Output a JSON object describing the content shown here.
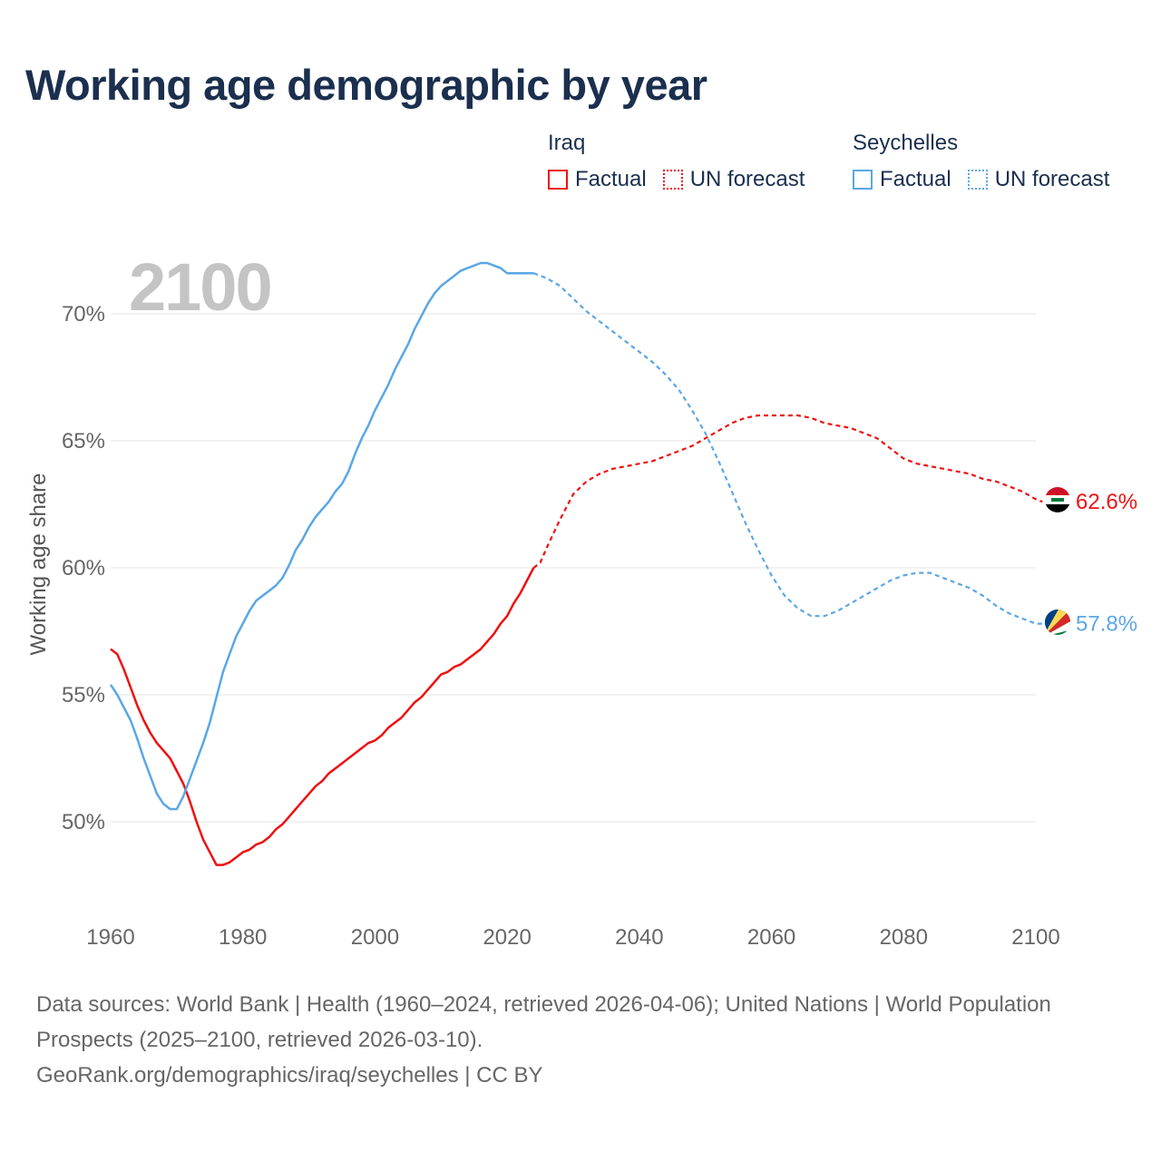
{
  "title": "Working age demographic by year",
  "year_watermark": "2100",
  "legend": {
    "groups": [
      {
        "name": "Iraq",
        "color": "#ee1111",
        "factual_label": "Factual",
        "forecast_label": "UN forecast"
      },
      {
        "name": "Seychelles",
        "color": "#5aa7e6",
        "factual_label": "Factual",
        "forecast_label": "UN forecast"
      }
    ]
  },
  "footer": {
    "sources": "Data sources: World Bank | Health (1960–2024, retrieved 2026-04-06); United Nations | World Population Prospects (2025–2100, retrieved 2026-03-10).",
    "credit": "GeoRank.org/demographics/iraq/seychelles | CC BY"
  },
  "chart_data": {
    "type": "line",
    "ylabel": "Working age share",
    "xlabel": "",
    "xlim": [
      1960,
      2100
    ],
    "ylim": [
      46.5,
      73.5
    ],
    "x_ticks": [
      1960,
      1980,
      2000,
      2020,
      2040,
      2060,
      2080,
      2100
    ],
    "y_ticks": [
      50,
      55,
      60,
      65,
      70
    ],
    "y_tick_labels": [
      "50%",
      "55%",
      "60%",
      "65%",
      "70%"
    ],
    "forecast_start": 2024,
    "series": [
      {
        "name": "Iraq",
        "color": "#ee1111",
        "end_label": "62.6%",
        "flag": "iraq-flag-icon",
        "points": [
          [
            1960,
            56.8
          ],
          [
            1961,
            56.6
          ],
          [
            1962,
            56.0
          ],
          [
            1963,
            55.3
          ],
          [
            1964,
            54.6
          ],
          [
            1965,
            54.0
          ],
          [
            1966,
            53.5
          ],
          [
            1967,
            53.1
          ],
          [
            1968,
            52.8
          ],
          [
            1969,
            52.5
          ],
          [
            1970,
            52.0
          ],
          [
            1971,
            51.5
          ],
          [
            1972,
            50.8
          ],
          [
            1973,
            50.0
          ],
          [
            1974,
            49.3
          ],
          [
            1975,
            48.8
          ],
          [
            1976,
            48.3
          ],
          [
            1977,
            48.3
          ],
          [
            1978,
            48.4
          ],
          [
            1979,
            48.6
          ],
          [
            1980,
            48.8
          ],
          [
            1981,
            48.9
          ],
          [
            1982,
            49.1
          ],
          [
            1983,
            49.2
          ],
          [
            1984,
            49.4
          ],
          [
            1985,
            49.7
          ],
          [
            1986,
            49.9
          ],
          [
            1987,
            50.2
          ],
          [
            1988,
            50.5
          ],
          [
            1989,
            50.8
          ],
          [
            1990,
            51.1
          ],
          [
            1991,
            51.4
          ],
          [
            1992,
            51.6
          ],
          [
            1993,
            51.9
          ],
          [
            1994,
            52.1
          ],
          [
            1995,
            52.3
          ],
          [
            1996,
            52.5
          ],
          [
            1997,
            52.7
          ],
          [
            1998,
            52.9
          ],
          [
            1999,
            53.1
          ],
          [
            2000,
            53.2
          ],
          [
            2001,
            53.4
          ],
          [
            2002,
            53.7
          ],
          [
            2003,
            53.9
          ],
          [
            2004,
            54.1
          ],
          [
            2005,
            54.4
          ],
          [
            2006,
            54.7
          ],
          [
            2007,
            54.9
          ],
          [
            2008,
            55.2
          ],
          [
            2009,
            55.5
          ],
          [
            2010,
            55.8
          ],
          [
            2011,
            55.9
          ],
          [
            2012,
            56.1
          ],
          [
            2013,
            56.2
          ],
          [
            2014,
            56.4
          ],
          [
            2015,
            56.6
          ],
          [
            2016,
            56.8
          ],
          [
            2017,
            57.1
          ],
          [
            2018,
            57.4
          ],
          [
            2019,
            57.8
          ],
          [
            2020,
            58.1
          ],
          [
            2021,
            58.6
          ],
          [
            2022,
            59.0
          ],
          [
            2023,
            59.5
          ],
          [
            2024,
            60.0
          ],
          [
            2025,
            60.2
          ],
          [
            2026,
            60.8
          ],
          [
            2028,
            61.9
          ],
          [
            2030,
            62.9
          ],
          [
            2032,
            63.4
          ],
          [
            2034,
            63.7
          ],
          [
            2036,
            63.9
          ],
          [
            2038,
            64.0
          ],
          [
            2040,
            64.1
          ],
          [
            2042,
            64.2
          ],
          [
            2044,
            64.4
          ],
          [
            2046,
            64.6
          ],
          [
            2048,
            64.8
          ],
          [
            2050,
            65.1
          ],
          [
            2052,
            65.4
          ],
          [
            2054,
            65.7
          ],
          [
            2056,
            65.9
          ],
          [
            2058,
            66.0
          ],
          [
            2060,
            66.0
          ],
          [
            2064,
            66.0
          ],
          [
            2066,
            65.9
          ],
          [
            2068,
            65.7
          ],
          [
            2072,
            65.5
          ],
          [
            2074,
            65.3
          ],
          [
            2076,
            65.1
          ],
          [
            2078,
            64.7
          ],
          [
            2080,
            64.3
          ],
          [
            2082,
            64.1
          ],
          [
            2084,
            64.0
          ],
          [
            2086,
            63.9
          ],
          [
            2090,
            63.7
          ],
          [
            2092,
            63.5
          ],
          [
            2094,
            63.4
          ],
          [
            2096,
            63.2
          ],
          [
            2098,
            63.0
          ],
          [
            2100,
            62.7
          ],
          [
            2101,
            62.6
          ]
        ]
      },
      {
        "name": "Seychelles",
        "color": "#5aa7e6",
        "end_label": "57.8%",
        "flag": "seychelles-flag-icon",
        "points": [
          [
            1960,
            55.4
          ],
          [
            1961,
            55.0
          ],
          [
            1962,
            54.5
          ],
          [
            1963,
            54.0
          ],
          [
            1964,
            53.3
          ],
          [
            1965,
            52.5
          ],
          [
            1966,
            51.8
          ],
          [
            1967,
            51.1
          ],
          [
            1968,
            50.7
          ],
          [
            1969,
            50.5
          ],
          [
            1970,
            50.5
          ],
          [
            1971,
            51.0
          ],
          [
            1972,
            51.7
          ],
          [
            1973,
            52.4
          ],
          [
            1974,
            53.1
          ],
          [
            1975,
            53.9
          ],
          [
            1976,
            54.9
          ],
          [
            1977,
            55.9
          ],
          [
            1978,
            56.6
          ],
          [
            1979,
            57.3
          ],
          [
            1980,
            57.8
          ],
          [
            1981,
            58.3
          ],
          [
            1982,
            58.7
          ],
          [
            1983,
            58.9
          ],
          [
            1984,
            59.1
          ],
          [
            1985,
            59.3
          ],
          [
            1986,
            59.6
          ],
          [
            1987,
            60.1
          ],
          [
            1988,
            60.7
          ],
          [
            1989,
            61.1
          ],
          [
            1990,
            61.6
          ],
          [
            1991,
            62.0
          ],
          [
            1992,
            62.3
          ],
          [
            1993,
            62.6
          ],
          [
            1994,
            63.0
          ],
          [
            1995,
            63.3
          ],
          [
            1996,
            63.8
          ],
          [
            1997,
            64.5
          ],
          [
            1998,
            65.1
          ],
          [
            1999,
            65.6
          ],
          [
            2000,
            66.2
          ],
          [
            2001,
            66.7
          ],
          [
            2002,
            67.2
          ],
          [
            2003,
            67.8
          ],
          [
            2004,
            68.3
          ],
          [
            2005,
            68.8
          ],
          [
            2006,
            69.4
          ],
          [
            2007,
            69.9
          ],
          [
            2008,
            70.4
          ],
          [
            2009,
            70.8
          ],
          [
            2010,
            71.1
          ],
          [
            2011,
            71.3
          ],
          [
            2012,
            71.5
          ],
          [
            2013,
            71.7
          ],
          [
            2014,
            71.8
          ],
          [
            2015,
            71.9
          ],
          [
            2016,
            72.0
          ],
          [
            2017,
            72.0
          ],
          [
            2018,
            71.9
          ],
          [
            2019,
            71.8
          ],
          [
            2020,
            71.6
          ],
          [
            2022,
            71.6
          ],
          [
            2024,
            71.6
          ],
          [
            2025,
            71.5
          ],
          [
            2026,
            71.4
          ],
          [
            2028,
            71.1
          ],
          [
            2030,
            70.6
          ],
          [
            2032,
            70.1
          ],
          [
            2034,
            69.7
          ],
          [
            2036,
            69.3
          ],
          [
            2038,
            68.9
          ],
          [
            2040,
            68.5
          ],
          [
            2042,
            68.1
          ],
          [
            2044,
            67.6
          ],
          [
            2046,
            67.0
          ],
          [
            2048,
            66.2
          ],
          [
            2050,
            65.3
          ],
          [
            2052,
            64.2
          ],
          [
            2054,
            63.0
          ],
          [
            2056,
            61.8
          ],
          [
            2058,
            60.7
          ],
          [
            2060,
            59.7
          ],
          [
            2062,
            58.9
          ],
          [
            2064,
            58.4
          ],
          [
            2066,
            58.1
          ],
          [
            2068,
            58.1
          ],
          [
            2070,
            58.3
          ],
          [
            2072,
            58.6
          ],
          [
            2074,
            58.9
          ],
          [
            2076,
            59.2
          ],
          [
            2078,
            59.5
          ],
          [
            2080,
            59.7
          ],
          [
            2082,
            59.8
          ],
          [
            2084,
            59.8
          ],
          [
            2086,
            59.6
          ],
          [
            2088,
            59.4
          ],
          [
            2090,
            59.2
          ],
          [
            2092,
            58.9
          ],
          [
            2094,
            58.5
          ],
          [
            2096,
            58.2
          ],
          [
            2098,
            58.0
          ],
          [
            2100,
            57.8
          ],
          [
            2101,
            57.8
          ]
        ]
      }
    ]
  }
}
